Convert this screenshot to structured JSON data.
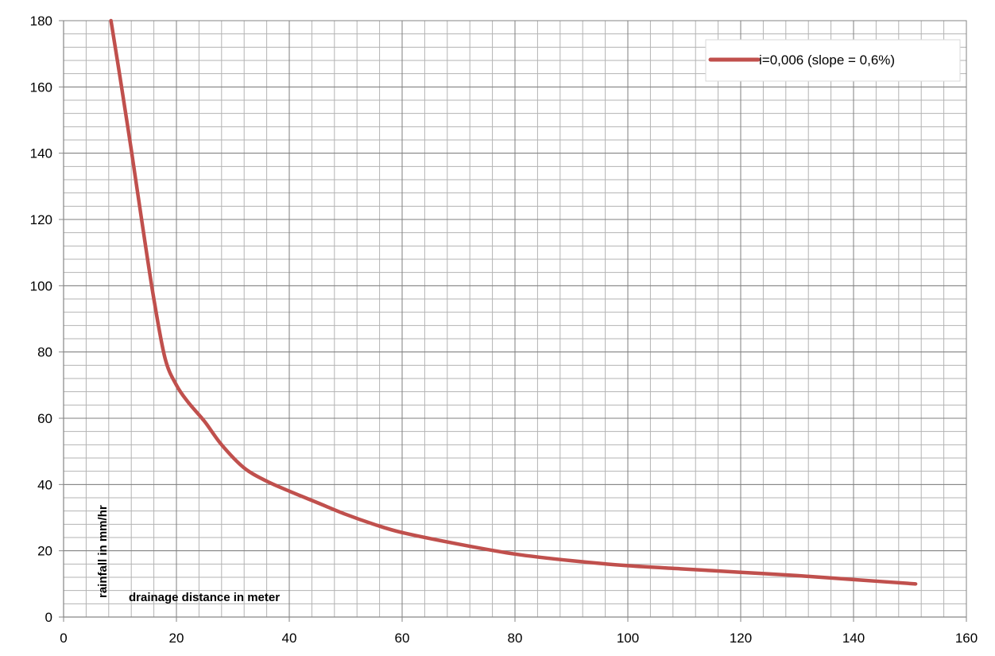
{
  "chart_data": {
    "type": "line",
    "title": "",
    "xlabel": "drainage distance in meter",
    "ylabel": "rainfall in mm/hr",
    "xlim": [
      0,
      160
    ],
    "ylim": [
      0,
      180
    ],
    "x_major_ticks": [
      0,
      20,
      40,
      60,
      80,
      100,
      120,
      140,
      160
    ],
    "y_major_ticks": [
      0,
      20,
      40,
      60,
      80,
      100,
      120,
      140,
      160,
      180
    ],
    "x_minor_step": 4,
    "y_minor_step": 4,
    "grid": true,
    "legend_position": "top-right",
    "series": [
      {
        "name": "i=0,006 (slope = 0,6%)",
        "color": "#c0504d",
        "x": [
          8.4,
          10,
          12,
          14,
          16,
          18,
          20,
          22,
          25,
          28,
          32,
          36,
          40,
          45,
          50,
          55,
          60,
          70,
          80,
          90,
          100,
          110,
          120,
          130,
          140,
          151
        ],
        "y": [
          180,
          163,
          141,
          118,
          96,
          78,
          70,
          65,
          59,
          52,
          45,
          41,
          38,
          34.5,
          31,
          28,
          25.5,
          22,
          19,
          17,
          15.5,
          14.5,
          13.5,
          12.5,
          11.3,
          10
        ]
      }
    ]
  }
}
